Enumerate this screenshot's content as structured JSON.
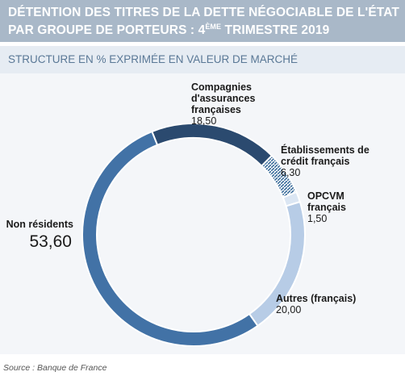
{
  "header": {
    "title_line1": "DÉTENTION DES TITRES DE LA DETTE NÉGOCIABLE DE L'ÉTAT",
    "title_line2_pre": "PAR GROUPE DE PORTEURS : 4",
    "title_line2_sup": "ÈME",
    "title_line2_post": " TRIMESTRE 2019",
    "subtitle": "STRUCTURE EN % EXPRIMÉE EN VALEUR DE MARCHÉ"
  },
  "source": "Source : Banque de France",
  "colors": {
    "compagnies": "#2b4a6f",
    "etablissements": "#3d6e9c",
    "opcvm": "#dbe6f3",
    "autres": "#b7cce6",
    "non_residents": "#4272a6"
  },
  "chart_data": {
    "type": "pie",
    "style": "donut",
    "title": "",
    "slices": [
      {
        "key": "compagnies",
        "name_lines": [
          "Compagnies",
          "d'assurances",
          "françaises"
        ],
        "value": 18.5,
        "value_label": "18,50",
        "pattern": "solid"
      },
      {
        "key": "etablissements",
        "name_lines": [
          "Établissements de",
          "crédit français"
        ],
        "value": 6.3,
        "value_label": "6,30",
        "pattern": "hatched"
      },
      {
        "key": "opcvm",
        "name_lines": [
          "OPCVM",
          "français"
        ],
        "value": 1.5,
        "value_label": "1,50",
        "pattern": "solid"
      },
      {
        "key": "autres",
        "name_lines": [
          "Autres (français)"
        ],
        "value": 20.0,
        "value_label": "20,00",
        "pattern": "solid"
      },
      {
        "key": "non_residents",
        "name_lines": [
          "Non résidents"
        ],
        "value": 53.6,
        "value_label": "53,60",
        "pattern": "solid",
        "emphasis": true
      }
    ]
  }
}
